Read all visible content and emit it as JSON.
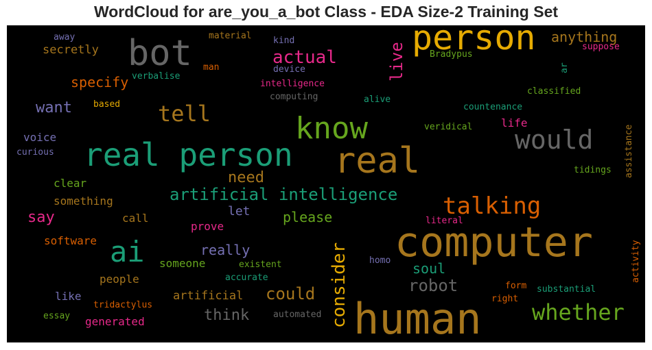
{
  "chart_data": {
    "type": "wordcloud",
    "title": "WordCloud for are_you_a_bot Class - EDA Size-2 Training Set",
    "background": "#000000",
    "colormap": [
      "#1b9e77",
      "#d95f02",
      "#7570b3",
      "#e7298a",
      "#66a61e",
      "#e6ab02",
      "#a6761d",
      "#666666"
    ],
    "words": [
      {
        "text": "human",
        "size": 62,
        "color": "#a6761d"
      },
      {
        "text": "computer",
        "size": 60,
        "color": "#a6761d"
      },
      {
        "text": "real person",
        "size": 46,
        "color": "#1b9e77"
      },
      {
        "text": "real",
        "size": 52,
        "color": "#a6761d"
      },
      {
        "text": "person",
        "size": 50,
        "color": "#e6ab02"
      },
      {
        "text": "bot",
        "size": 52,
        "color": "#666666"
      },
      {
        "text": "know",
        "size": 44,
        "color": "#66a61e"
      },
      {
        "text": "ai",
        "size": 42,
        "color": "#1b9e77"
      },
      {
        "text": "would",
        "size": 38,
        "color": "#666666"
      },
      {
        "text": "talking",
        "size": 34,
        "color": "#d95f02"
      },
      {
        "text": "whether",
        "size": 32,
        "color": "#66a61e"
      },
      {
        "text": "tell",
        "size": 32,
        "color": "#a6761d"
      },
      {
        "text": "consider",
        "size": 26,
        "color": "#e6ab02"
      },
      {
        "text": "artificial intelligence",
        "size": 24,
        "color": "#1b9e77"
      },
      {
        "text": "actual",
        "size": 26,
        "color": "#e7298a"
      },
      {
        "text": "live",
        "size": 24,
        "color": "#e7298a"
      },
      {
        "text": "robot",
        "size": 24,
        "color": "#666666"
      },
      {
        "text": "could",
        "size": 24,
        "color": "#a6761d"
      },
      {
        "text": "want",
        "size": 22,
        "color": "#7570b3"
      },
      {
        "text": "need",
        "size": 22,
        "color": "#a6761d"
      },
      {
        "text": "think",
        "size": 22,
        "color": "#666666"
      },
      {
        "text": "say",
        "size": 22,
        "color": "#e7298a"
      },
      {
        "text": "anything",
        "size": 20,
        "color": "#a6761d"
      },
      {
        "text": "really",
        "size": 20,
        "color": "#7570b3"
      },
      {
        "text": "specify",
        "size": 20,
        "color": "#d95f02"
      },
      {
        "text": "please",
        "size": 20,
        "color": "#66a61e"
      },
      {
        "text": "soul",
        "size": 20,
        "color": "#1b9e77"
      },
      {
        "text": "let",
        "size": 18,
        "color": "#7570b3"
      },
      {
        "text": "artificial",
        "size": 17,
        "color": "#a6761d"
      },
      {
        "text": "secretly",
        "size": 17,
        "color": "#a6761d"
      },
      {
        "text": "voice",
        "size": 16,
        "color": "#7570b3"
      },
      {
        "text": "life",
        "size": 16,
        "color": "#e7298a"
      },
      {
        "text": "software",
        "size": 16,
        "color": "#d95f02"
      },
      {
        "text": "something",
        "size": 16,
        "color": "#a6761d"
      },
      {
        "text": "people",
        "size": 16,
        "color": "#a6761d"
      },
      {
        "text": "clear",
        "size": 16,
        "color": "#66a61e"
      },
      {
        "text": "someone",
        "size": 16,
        "color": "#66a61e"
      },
      {
        "text": "generated",
        "size": 16,
        "color": "#e7298a"
      },
      {
        "text": "call",
        "size": 16,
        "color": "#a6761d"
      },
      {
        "text": "prove",
        "size": 16,
        "color": "#e7298a"
      },
      {
        "text": "like",
        "size": 16,
        "color": "#7570b3"
      },
      {
        "text": "assistance",
        "size": 13,
        "color": "#a6761d"
      },
      {
        "text": "activity",
        "size": 13,
        "color": "#d95f02"
      },
      {
        "text": "suppose",
        "size": 13,
        "color": "#e7298a"
      },
      {
        "text": "Bradypus",
        "size": 13,
        "color": "#66a61e"
      },
      {
        "text": "classified",
        "size": 13,
        "color": "#66a61e"
      },
      {
        "text": "countenance",
        "size": 13,
        "color": "#1b9e77"
      },
      {
        "text": "veridical",
        "size": 13,
        "color": "#66a61e"
      },
      {
        "text": "tidings",
        "size": 13,
        "color": "#66a61e"
      },
      {
        "text": "literal",
        "size": 13,
        "color": "#e7298a"
      },
      {
        "text": "substantial",
        "size": 13,
        "color": "#1b9e77"
      },
      {
        "text": "form",
        "size": 13,
        "color": "#d95f02"
      },
      {
        "text": "right",
        "size": 13,
        "color": "#d95f02"
      },
      {
        "text": "homo",
        "size": 13,
        "color": "#7570b3"
      },
      {
        "text": "automated",
        "size": 13,
        "color": "#666666"
      },
      {
        "text": "existent",
        "size": 13,
        "color": "#66a61e"
      },
      {
        "text": "accurate",
        "size": 13,
        "color": "#1b9e77"
      },
      {
        "text": "tridactylus",
        "size": 13,
        "color": "#d95f02"
      },
      {
        "text": "essay",
        "size": 13,
        "color": "#66a61e"
      },
      {
        "text": "curious",
        "size": 13,
        "color": "#7570b3"
      },
      {
        "text": "based",
        "size": 13,
        "color": "#e6ab02"
      },
      {
        "text": "verbalise",
        "size": 13,
        "color": "#1b9e77"
      },
      {
        "text": "man",
        "size": 13,
        "color": "#d95f02"
      },
      {
        "text": "material",
        "size": 13,
        "color": "#a6761d"
      },
      {
        "text": "away",
        "size": 13,
        "color": "#7570b3"
      },
      {
        "text": "kind",
        "size": 13,
        "color": "#7570b3"
      },
      {
        "text": "device",
        "size": 13,
        "color": "#7570b3"
      },
      {
        "text": "intelligence",
        "size": 13,
        "color": "#e7298a"
      },
      {
        "text": "computing",
        "size": 13,
        "color": "#666666"
      },
      {
        "text": "alive",
        "size": 13,
        "color": "#1b9e77"
      },
      {
        "text": "ar",
        "size": 13,
        "color": "#1b9e77"
      }
    ]
  }
}
